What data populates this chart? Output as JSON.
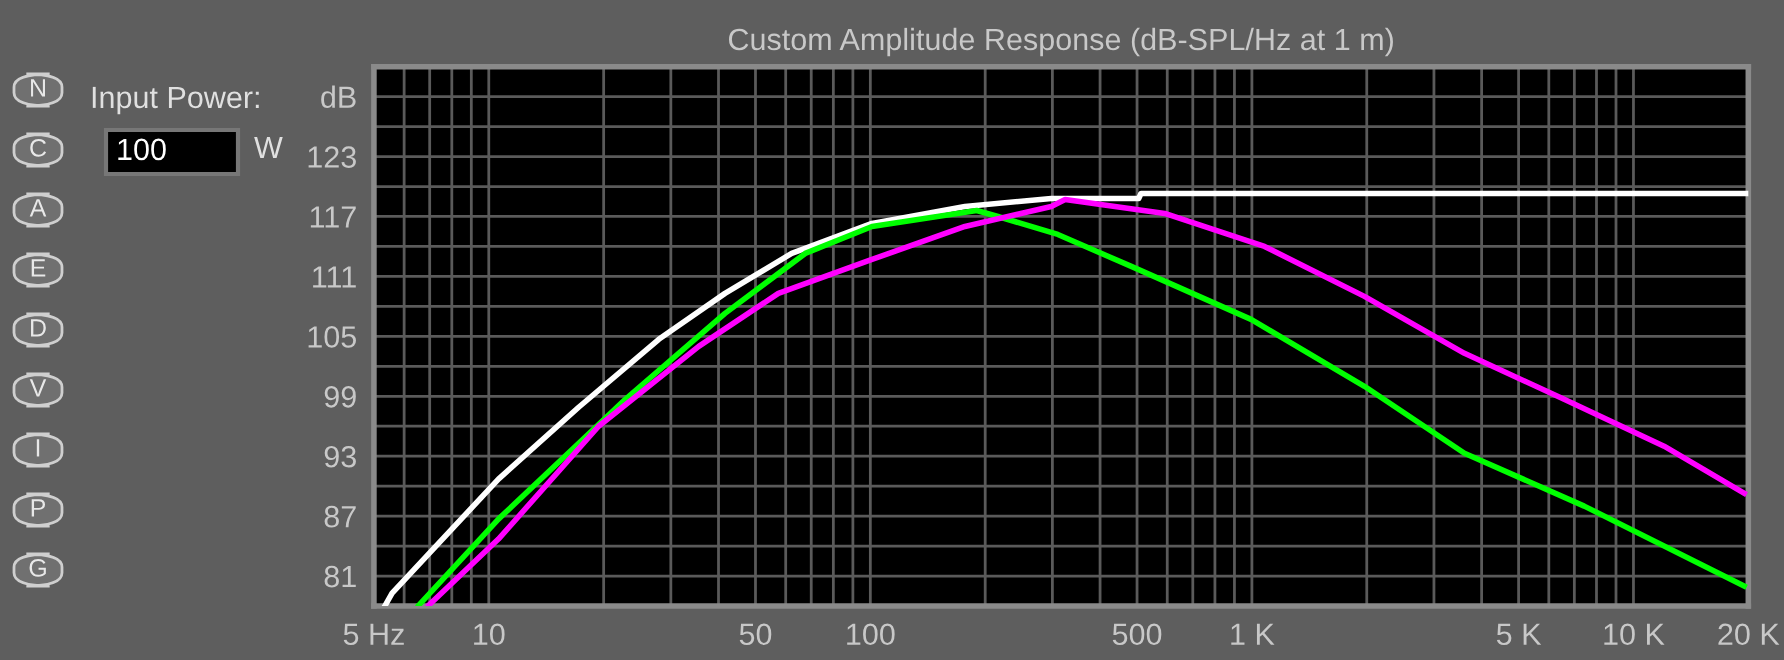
{
  "chart_data": {
    "type": "line",
    "title": "Custom Amplitude Response (dB-SPL/Hz at 1 m)",
    "annotations": [
      "Input Power:",
      "100",
      "W",
      "N",
      "C",
      "A",
      "E",
      "D",
      "V",
      "I",
      "P",
      "G"
    ],
    "log": "x",
    "grid": true,
    "legend": false,
    "marker": "none",
    "line_style": "solid",
    "xlim": [
      5,
      20000
    ],
    "xticks": [
      {
        "value": 5,
        "label": "5 Hz"
      },
      10,
      50,
      100,
      500,
      {
        "value": 1000,
        "label": "1 K"
      },
      {
        "value": 5000,
        "label": "5 K"
      },
      {
        "value": 10000,
        "label": "10 K"
      },
      {
        "value": 20000,
        "label": "20 K"
      }
    ],
    "ylim": [
      78,
      132
    ],
    "yticks": [
      81,
      {
        "value": 84,
        "label": null
      },
      87,
      {
        "value": 90,
        "label": null
      },
      93,
      {
        "value": 96,
        "label": null
      },
      99,
      {
        "value": 102,
        "label": null
      },
      105,
      {
        "value": 108,
        "label": null
      },
      111,
      {
        "value": 114,
        "label": null
      },
      117,
      {
        "value": 120,
        "label": null
      },
      123,
      {
        "value": 126,
        "label": null
      },
      {
        "value": 129,
        "label": "dB"
      }
    ],
    "series": [
      {
        "color": "#ffffff",
        "x": [
          5.34,
          5.58,
          10.6,
          17.2,
          27.9,
          41.6,
          62.2,
          101,
          177,
          298,
          505,
          512,
          20000
        ],
        "values": [
          78,
          79.3,
          90.7,
          97.9,
          104.7,
          109.3,
          113.3,
          116.3,
          118,
          118.8,
          118.8,
          119.3,
          119.3
        ]
      },
      {
        "color": "#00ff00",
        "x": [
          6.56,
          10.6,
          22.8,
          41.6,
          67.5,
          101,
          190,
          216,
          310,
          483,
          995,
          1972,
          3606,
          7430,
          19500
        ],
        "values": [
          78.1,
          86.7,
          98.7,
          107.3,
          113.3,
          116,
          117.6,
          117,
          115.2,
          112,
          106.7,
          100,
          93.3,
          88,
          80
        ]
      },
      {
        "color": "#ff00ff",
        "x": [
          6.97,
          10.6,
          19.4,
          35.5,
          57.4,
          101,
          177,
          298,
          324,
          591,
          1079,
          1972,
          3606,
          6580,
          12030,
          19500
        ],
        "values": [
          78.1,
          84.7,
          96,
          104,
          109.3,
          112.7,
          116,
          118,
          118.7,
          117.3,
          114,
          109,
          103.3,
          98.7,
          94,
          89.3
        ]
      }
    ]
  }
}
